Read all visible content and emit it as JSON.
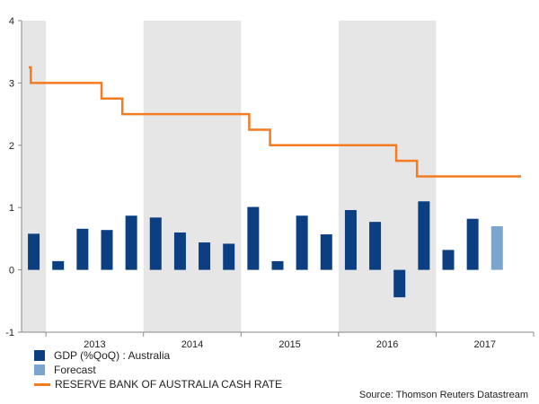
{
  "chart_data": {
    "type": "bar+line",
    "title": "",
    "xlabel": "",
    "ylabel": "",
    "ylim": [
      -1,
      4
    ],
    "yticks": [
      -1,
      0,
      1,
      2,
      3,
      4
    ],
    "year_labels": [
      "2013",
      "2014",
      "2015",
      "2016",
      "2017"
    ],
    "shaded_years": [
      "2012",
      "2014",
      "2016"
    ],
    "quarters": [
      "2012 Q4",
      "2013 Q1",
      "2013 Q2",
      "2013 Q3",
      "2013 Q4",
      "2014 Q1",
      "2014 Q2",
      "2014 Q3",
      "2014 Q4",
      "2015 Q1",
      "2015 Q2",
      "2015 Q3",
      "2015 Q4",
      "2016 Q1",
      "2016 Q2",
      "2016 Q3",
      "2016 Q4",
      "2017 Q1",
      "2017 Q2",
      "2017 Q3",
      "2017 Q4"
    ],
    "series": [
      {
        "name": "GDP (%QoQ) : Australia",
        "type": "bar",
        "color": "#0b3f82",
        "values": [
          0.58,
          0.14,
          0.66,
          0.64,
          0.87,
          0.84,
          0.6,
          0.44,
          0.42,
          1.01,
          0.14,
          0.87,
          0.57,
          0.96,
          0.77,
          -0.44,
          1.1,
          0.32,
          0.82,
          null,
          null
        ]
      },
      {
        "name": "Forecast",
        "type": "bar",
        "color": "#7aa6cd",
        "values": [
          null,
          null,
          null,
          null,
          null,
          null,
          null,
          null,
          null,
          null,
          null,
          null,
          null,
          null,
          null,
          null,
          null,
          null,
          null,
          0.7,
          null
        ]
      },
      {
        "name": "RESERVE BANK OF AUSTRALIA CASH RATE",
        "type": "step-line",
        "color": "#f47b20",
        "points": [
          [
            0.0,
            3.25
          ],
          [
            0.03,
            3.0
          ],
          [
            1.05,
            2.75
          ],
          [
            1.35,
            2.5
          ],
          [
            3.18,
            2.25
          ],
          [
            3.48,
            2.0
          ],
          [
            5.3,
            1.75
          ],
          [
            5.6,
            1.5
          ],
          [
            7.1,
            1.5
          ]
        ]
      }
    ],
    "source": "Source: Thomson Reuters Datastream"
  },
  "colors": {
    "gdp": "#0b3f82",
    "forecast": "#7aa6cd",
    "cash_rate": "#f47b20",
    "shade": "#e6e6e6",
    "axis": "#888888"
  }
}
